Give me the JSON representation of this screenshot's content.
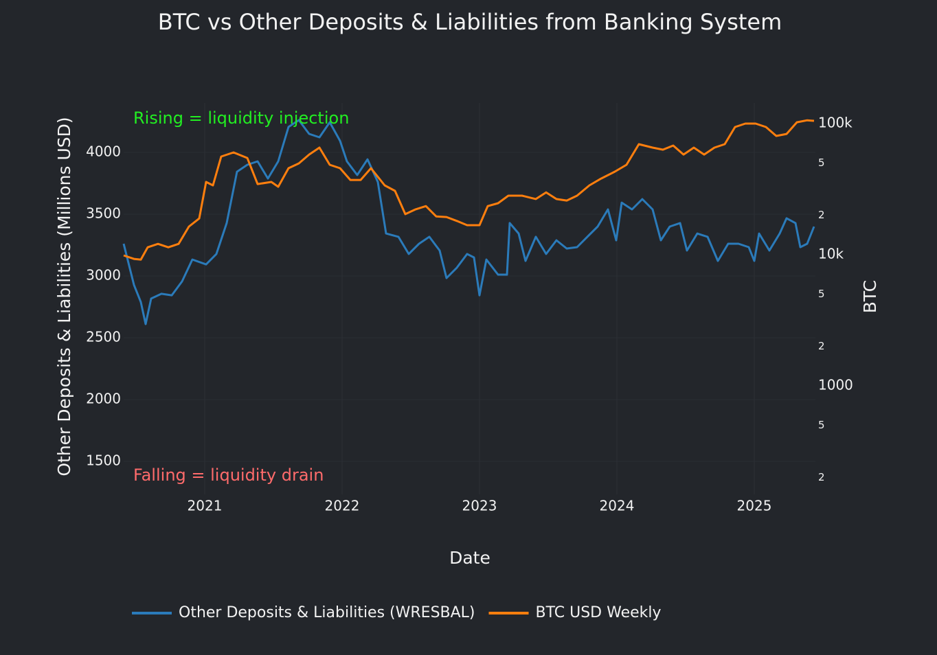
{
  "chart_data": {
    "type": "line",
    "title": "BTC vs Other Deposits & Liabilities from Banking System",
    "x_label": "Date",
    "y_label": "Other Deposits & Liabilities (Millions USD)",
    "y2_label": "BTC",
    "y2scale": "log",
    "grid": true,
    "legend": "bottom",
    "annotations": [
      {
        "text": "Rising = liquidity injection",
        "color": "#22ee22"
      },
      {
        "text": "Falling = liquidity drain",
        "color": "#ff6b6b"
      }
    ],
    "xlim": [
      2020.41,
      2025.445
    ],
    "xticks": [
      2021,
      2022,
      2023,
      2024,
      2025
    ],
    "ylim": [
      1233,
      4400
    ],
    "yticks": [
      1500,
      2000,
      2500,
      3000,
      3500,
      4000
    ],
    "y2lim": [
      149,
      143600
    ],
    "y2ticks": [
      {
        "value": 200,
        "label": "2"
      },
      {
        "value": 500,
        "label": "5"
      },
      1000,
      {
        "value": 2000,
        "label": "2"
      },
      {
        "value": 5000,
        "label": "5"
      },
      {
        "value": 10000,
        "label": "10k"
      },
      {
        "value": 20000,
        "label": "2"
      },
      {
        "value": 50000,
        "label": "5"
      },
      {
        "value": 100000,
        "label": "100k"
      }
    ],
    "series": [
      {
        "name": "Other Deposits & Liabilities (WRESBAL)",
        "color": "#2b7bba",
        "x": [
          2020.41,
          2020.485,
          2020.535,
          2020.57,
          2020.61,
          2020.685,
          2020.76,
          2020.835,
          2020.91,
          2021.01,
          2021.085,
          2021.16,
          2021.235,
          2021.31,
          2021.385,
          2021.46,
          2021.535,
          2021.61,
          2021.685,
          2021.76,
          2021.835,
          2021.91,
          2021.985,
          2022.035,
          2022.11,
          2022.185,
          2022.26,
          2022.32,
          2022.41,
          2022.485,
          2022.56,
          2022.635,
          2022.71,
          2022.76,
          2022.835,
          2022.91,
          2022.96,
          2023.0,
          2023.05,
          2023.135,
          2023.2,
          2023.22,
          2023.285,
          2023.335,
          2023.41,
          2023.485,
          2023.56,
          2023.635,
          2023.71,
          2023.785,
          2023.86,
          2023.935,
          2023.995,
          2024.035,
          2024.11,
          2024.185,
          2024.26,
          2024.32,
          2024.385,
          2024.46,
          2024.51,
          2024.585,
          2024.66,
          2024.735,
          2024.81,
          2024.885,
          2024.96,
          2025.0,
          2025.035,
          2025.11,
          2025.185,
          2025.235,
          2025.3,
          2025.335,
          2025.385,
          2025.435
        ],
        "values": [
          3261,
          2928,
          2789,
          2611,
          2817,
          2856,
          2844,
          2956,
          3133,
          3094,
          3178,
          3428,
          3844,
          3900,
          3928,
          3789,
          3928,
          4206,
          4261,
          4150,
          4122,
          4244,
          4094,
          3928,
          3817,
          3944,
          3761,
          3344,
          3317,
          3178,
          3261,
          3317,
          3206,
          2983,
          3067,
          3178,
          3150,
          2844,
          3133,
          3011,
          3011,
          3428,
          3344,
          3122,
          3317,
          3178,
          3289,
          3222,
          3233,
          3317,
          3400,
          3539,
          3289,
          3594,
          3539,
          3622,
          3539,
          3289,
          3400,
          3428,
          3206,
          3344,
          3317,
          3122,
          3261,
          3261,
          3233,
          3122,
          3344,
          3206,
          3344,
          3467,
          3428,
          3233,
          3261,
          3400
        ]
      },
      {
        "name": "BTC USD Weekly",
        "color": "#ff7f0e",
        "axis": "y2",
        "x": [
          2020.41,
          2020.485,
          2020.535,
          2020.585,
          2020.66,
          2020.735,
          2020.81,
          2020.885,
          2020.96,
          2021.01,
          2021.06,
          2021.12,
          2021.21,
          2021.31,
          2021.385,
          2021.485,
          2021.535,
          2021.61,
          2021.685,
          2021.76,
          2021.835,
          2021.91,
          2021.985,
          2022.06,
          2022.135,
          2022.21,
          2022.31,
          2022.385,
          2022.46,
          2022.535,
          2022.61,
          2022.685,
          2022.76,
          2022.835,
          2022.91,
          2023.0,
          2023.06,
          2023.135,
          2023.21,
          2023.31,
          2023.41,
          2023.485,
          2023.56,
          2023.635,
          2023.71,
          2023.8,
          2023.885,
          2023.985,
          2024.07,
          2024.16,
          2024.26,
          2024.335,
          2024.41,
          2024.485,
          2024.56,
          2024.635,
          2024.71,
          2024.785,
          2024.86,
          2024.935,
          2025.01,
          2025.085,
          2025.16,
          2025.235,
          2025.31,
          2025.385,
          2025.435
        ],
        "values": [
          9880,
          9300,
          9180,
          11400,
          12100,
          11400,
          12100,
          16400,
          18900,
          35900,
          33800,
          56100,
          60300,
          54700,
          34600,
          35900,
          33000,
          45700,
          49700,
          58100,
          65600,
          48500,
          45700,
          37200,
          37200,
          45700,
          33800,
          30700,
          20400,
          22200,
          23500,
          19600,
          19400,
          18100,
          16800,
          16800,
          23500,
          24700,
          28200,
          28200,
          26600,
          29900,
          26600,
          25900,
          28200,
          33800,
          38100,
          43000,
          48500,
          69700,
          65600,
          63300,
          68000,
          58100,
          65600,
          58100,
          65600,
          69700,
          94200,
          100000,
          100000,
          94200,
          80500,
          83400,
          102400,
          106000,
          105000
        ]
      }
    ]
  }
}
